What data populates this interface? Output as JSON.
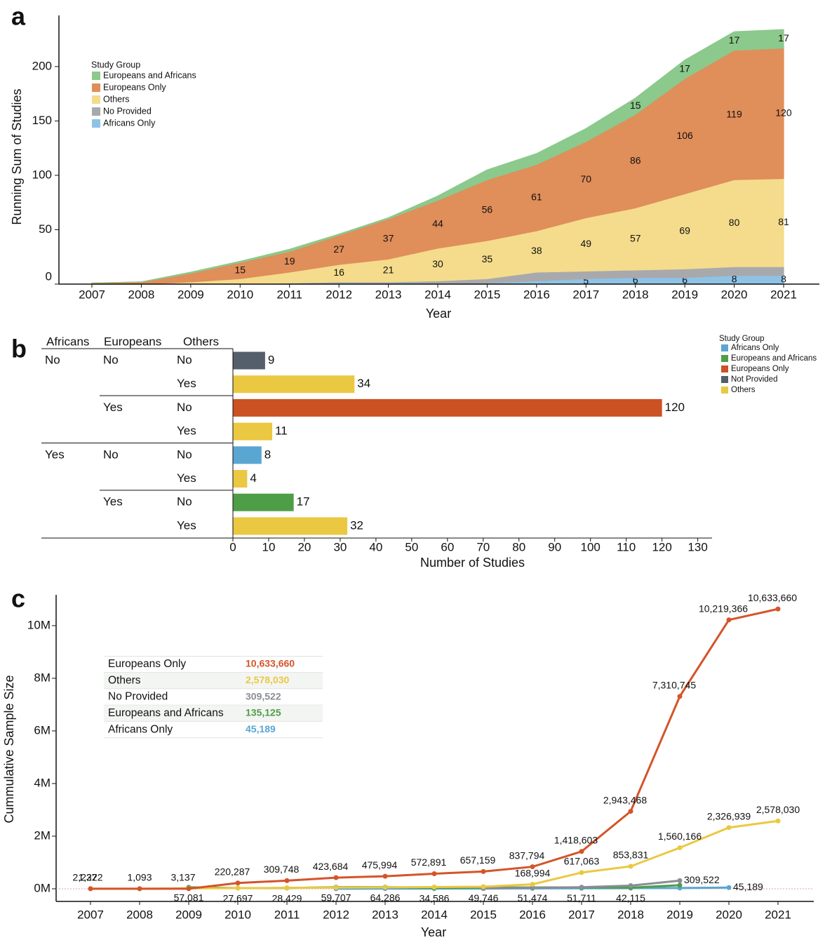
{
  "chart_data": [
    {
      "type": "area",
      "panel": "a",
      "xlabel": "Year",
      "ylabel": "Running Sum of Studies",
      "categories": [
        "2007",
        "2008",
        "2009",
        "2010",
        "2011",
        "2012",
        "2013",
        "2014",
        "2015",
        "2016",
        "2017",
        "2018",
        "2019",
        "2020",
        "2021"
      ],
      "ylim": [
        0,
        247
      ],
      "yticks": [
        0,
        50,
        100,
        150,
        200
      ],
      "legend_title": "Study Group",
      "series": [
        {
          "name": "Africans Only",
          "color": "#8ec3e6",
          "values": [
            0,
            0,
            0,
            0,
            0,
            1,
            1,
            1,
            1,
            3,
            5,
            6,
            6,
            8,
            8
          ],
          "value_labels": [
            null,
            null,
            null,
            null,
            null,
            null,
            null,
            null,
            null,
            null,
            "5",
            "6",
            "6",
            "8",
            "8"
          ]
        },
        {
          "name": "No Provided",
          "color": "#a8a9ad",
          "values": [
            0,
            0,
            0,
            0,
            1,
            1,
            1,
            2,
            4,
            8,
            7,
            7,
            8,
            8,
            8
          ],
          "value_labels": [
            null,
            null,
            null,
            null,
            null,
            null,
            null,
            null,
            null,
            null,
            null,
            null,
            null,
            null,
            null
          ]
        },
        {
          "name": "Others",
          "color": "#f4dc8c",
          "values": [
            0,
            0,
            2,
            5,
            10,
            16,
            21,
            30,
            35,
            38,
            49,
            57,
            69,
            80,
            81
          ],
          "value_labels": [
            null,
            null,
            null,
            null,
            null,
            "16",
            "21",
            "30",
            "35",
            "38",
            "49",
            "57",
            "69",
            "80",
            "81"
          ]
        },
        {
          "name": "Europeans Only",
          "color": "#e08e5a",
          "values": [
            1,
            2,
            8,
            15,
            19,
            27,
            37,
            44,
            56,
            61,
            70,
            86,
            106,
            119,
            120
          ],
          "value_labels": [
            null,
            null,
            null,
            "15",
            "19",
            "27",
            "37",
            "44",
            "56",
            "61",
            "70",
            "86",
            "106",
            "119",
            "120"
          ]
        },
        {
          "name": "Europeans and Africans",
          "color": "#8cc98c",
          "values": [
            0,
            0,
            1,
            1,
            2,
            1,
            1,
            4,
            9,
            10,
            12,
            15,
            17,
            17,
            17
          ],
          "value_labels": [
            null,
            null,
            null,
            null,
            null,
            null,
            null,
            null,
            null,
            null,
            null,
            "15",
            "17",
            "17",
            "17"
          ]
        }
      ]
    },
    {
      "type": "bar",
      "panel": "b",
      "xlabel": "Number of Studies",
      "columns": [
        "Africans",
        "Europeans",
        "Others"
      ],
      "rows": [
        [
          "No",
          "No",
          "No"
        ],
        [
          null,
          null,
          "Yes"
        ],
        [
          null,
          "Yes",
          "No"
        ],
        [
          null,
          null,
          "Yes"
        ],
        [
          "Yes",
          "No",
          "No"
        ],
        [
          null,
          null,
          "Yes"
        ],
        [
          null,
          "Yes",
          "No"
        ],
        [
          null,
          null,
          "Yes"
        ]
      ],
      "values": [
        9,
        34,
        120,
        11,
        8,
        4,
        17,
        32
      ],
      "colors": [
        "#555f6b",
        "#ebc842",
        "#cc5123",
        "#ebc842",
        "#5aa6d3",
        "#ebc842",
        "#4e9e47",
        "#ebc842"
      ],
      "xlim": [
        0,
        134
      ],
      "xticks": [
        0,
        10,
        20,
        30,
        40,
        50,
        60,
        70,
        80,
        90,
        100,
        110,
        120,
        130
      ],
      "legend_title": "Study Group",
      "legend": [
        {
          "name": "Africans Only",
          "color": "#5aa6d3"
        },
        {
          "name": "Europeans and Africans",
          "color": "#4e9e47"
        },
        {
          "name": "Europeans Only",
          "color": "#cc5123"
        },
        {
          "name": "Not Provided",
          "color": "#555f6b"
        },
        {
          "name": "Others",
          "color": "#ebc842"
        }
      ]
    },
    {
      "type": "line",
      "panel": "c",
      "xlabel": "Year",
      "ylabel": "Cummulative Sample Size",
      "categories": [
        "2007",
        "2008",
        "2009",
        "2010",
        "2011",
        "2012",
        "2013",
        "2014",
        "2015",
        "2016",
        "2017",
        "2018",
        "2019",
        "2020",
        "2021"
      ],
      "ylim": [
        -480000,
        11170000
      ],
      "yticks": [
        {
          "value": 0,
          "label": "0M"
        },
        {
          "value": 2000000,
          "label": "2M"
        },
        {
          "value": 4000000,
          "label": "4M"
        },
        {
          "value": 6000000,
          "label": "6M"
        },
        {
          "value": 8000000,
          "label": "8M"
        },
        {
          "value": 10000000,
          "label": "10M"
        }
      ],
      "zero_line": true,
      "totals": [
        "10,633,660",
        "2,578,030",
        "309,522",
        "135,125",
        "45,189"
      ],
      "series": [
        {
          "name": "Europeans Only",
          "color": "#d4542a",
          "values": [
            2237,
            2500,
            3137,
            220287,
            309748,
            423684,
            475994,
            572891,
            657159,
            837794,
            1418603,
            2943468,
            7310745,
            10219366,
            10633660
          ],
          "value_labels": [
            "2,237",
            null,
            "3,137",
            "220,287",
            "309,748",
            "423,684",
            "475,994",
            "572,891",
            "657,159",
            "837,794",
            "1,418,603",
            "2,943,468",
            "7,310,745",
            "10,219,366",
            "10,633,660"
          ]
        },
        {
          "name": "Others",
          "color": "#ebc842",
          "values": [
            1222,
            1093,
            15000,
            25000,
            35000,
            45000,
            55000,
            65000,
            80000,
            168994,
            617063,
            853831,
            1560166,
            2326939,
            2578030
          ],
          "value_labels": [
            "1,222",
            "1,093",
            null,
            null,
            null,
            null,
            null,
            null,
            null,
            "168,994",
            "617,063",
            "853,831",
            "1,560,166",
            "2,326,939",
            "2,578,030"
          ]
        },
        {
          "name": "No Provided",
          "color": "#8a8d94",
          "values": [
            null,
            null,
            null,
            null,
            null,
            null,
            null,
            null,
            20000,
            40000,
            60000,
            120000,
            309522,
            null,
            null
          ],
          "value_labels": [
            null,
            null,
            null,
            null,
            null,
            null,
            null,
            null,
            null,
            null,
            null,
            null,
            "309,522",
            null,
            null
          ]
        },
        {
          "name": "Europeans and Africans",
          "color": "#4e9e47",
          "values": [
            null,
            null,
            57081,
            27697,
            28429,
            59707,
            64286,
            34586,
            49746,
            51474,
            51711,
            42115,
            135125,
            null,
            null
          ],
          "value_labels": [
            null,
            null,
            "57,081",
            "27,697",
            "28,429",
            "59,707",
            "64,286",
            "34,586",
            "49,746",
            "51,474",
            "51,711",
            "42,115",
            null,
            null,
            null
          ]
        },
        {
          "name": "Africans Only",
          "color": "#5aa6d3",
          "values": [
            null,
            null,
            null,
            null,
            null,
            2000,
            5000,
            8000,
            10000,
            15000,
            20000,
            25000,
            30000,
            45189,
            null
          ],
          "value_labels": [
            null,
            null,
            null,
            null,
            null,
            null,
            null,
            null,
            null,
            null,
            null,
            null,
            null,
            "45,189",
            null
          ]
        }
      ]
    }
  ]
}
